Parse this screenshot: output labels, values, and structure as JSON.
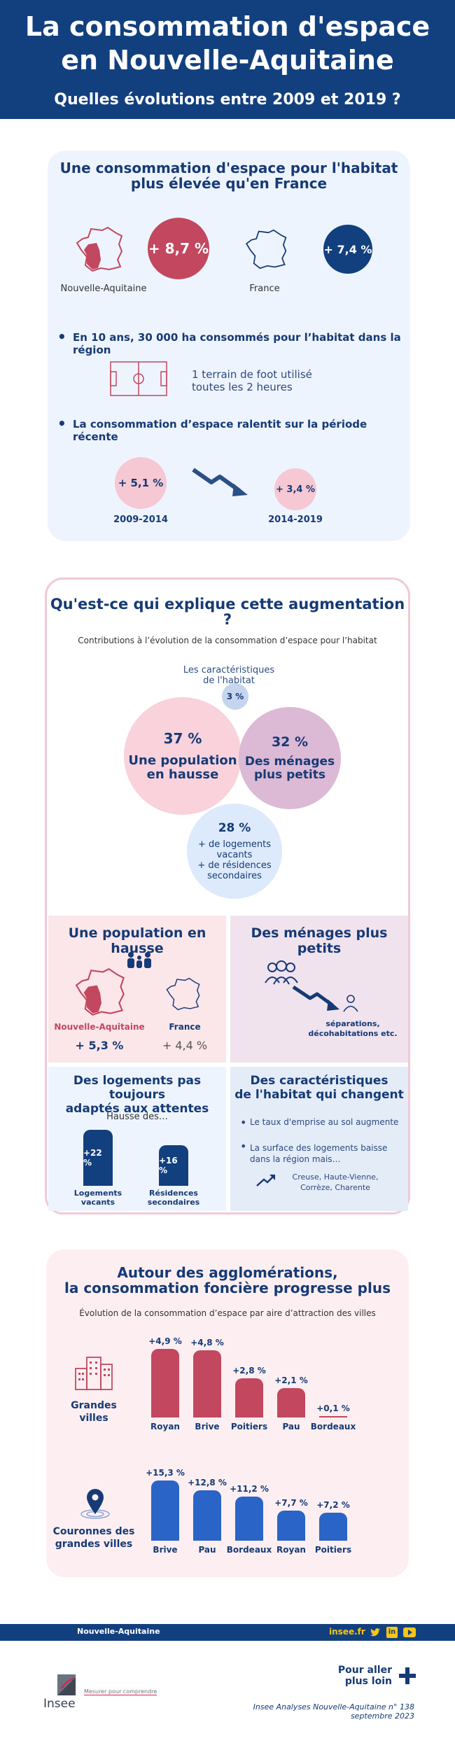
{
  "header": {
    "title_line1": "La consommation d'espace",
    "title_line2": "en Nouvelle-Aquitaine",
    "subtitle": "Quelles évolutions entre 2009 et 2019 ?"
  },
  "section1": {
    "title_line1": "Une consommation d'espace pour l'habitat",
    "title_line2": "plus élevée qu'en France",
    "na_value": "+ 8,7 %",
    "na_label": "Nouvelle-Aquitaine",
    "fr_value": "+ 7,4 %",
    "fr_label": "France",
    "bullet1": "En 10 ans, 30 000 ha consommés pour l’habitat dans la région",
    "foot_line1": "1 terrain de foot utilisé",
    "foot_line2": "toutes les 2 heures",
    "bullet2": "La consommation d’espace ralentit sur la période récente",
    "period1_value": "+ 5,1 %",
    "period1_label": "2009-2014",
    "period2_value": "+ 3,4 %",
    "period2_label": "2014-2019"
  },
  "section2": {
    "title": "Qu'est-ce qui explique cette augmentation ?",
    "subtitle": "Contributions à l’évolution de la consommation d’espace pour l’habitat",
    "c1_pct": "37 %",
    "c1_line1": "Une population",
    "c1_line2": "en hausse",
    "c2_pct": "32 %",
    "c2_line1": "Des ménages",
    "c2_line2": "plus petits",
    "c3_pct": "3 %",
    "c3_label_line1": "Les caractéristiques",
    "c3_label_line2": "de l'habitat",
    "c4_pct": "28 %",
    "c4_line1": "+ de logements",
    "c4_line2": "vacants",
    "c4_line3": "+ de résidences",
    "c4_line4": "secondaires",
    "p1_title": "Une population en hausse",
    "p1_na_label": "Nouvelle-Aquitaine",
    "p1_fr_label": "France",
    "p1_na_value": "+ 5,3 %",
    "p1_fr_value": "+ 4,4 %",
    "p2_title": "Des ménages plus petits",
    "p2_text_line1": "séparations,",
    "p2_text_line2": "décohabitations etc.",
    "p3_title_line1": "Des logements pas toujours",
    "p3_title_line2": "adaptés aux attentes",
    "p3_sub": "Hausse des…",
    "p3_b1_value": "+22 %",
    "p3_b1_line1": "Logements",
    "p3_b1_line2": "vacants",
    "p3_b2_value": "+16 %",
    "p3_b2_line1": "Résidences",
    "p3_b2_line2": "secondaires",
    "p4_title_line1": "Des caractéristiques",
    "p4_title_line2": "de l'habitat qui changent",
    "p4_bullet1": "Le taux d'emprise au sol augmente",
    "p4_bullet2_line1": "La surface des logements baisse",
    "p4_bullet2_line2": "dans la région mais…",
    "p4_note_line1": "Creuse, Haute-Vienne,",
    "p4_note_line2": "Corrèze, Charente"
  },
  "section3": {
    "title_line1": "Autour des agglomérations,",
    "title_line2": "la consommation foncière progresse plus",
    "subtitle": "Évolution de la consommation d’espace par aire d’attraction des villes",
    "group1_line1": "Grandes",
    "group1_line2": "villes",
    "group2_line1": "Couronnes des",
    "group2_line2": "grandes villes"
  },
  "chart_data": [
    {
      "type": "bar",
      "categories": [
        "Royan",
        "Brive",
        "Poitiers",
        "Pau",
        "Bordeaux"
      ],
      "values": [
        4.9,
        4.8,
        2.8,
        2.1,
        0.1
      ],
      "labels": [
        "+4,9 %",
        "+4,8 %",
        "+2,8 %",
        "+2,1 %",
        "+0,1 %"
      ],
      "color": "#c2475f"
    },
    {
      "type": "bar",
      "categories": [
        "Brive",
        "Pau",
        "Bordeaux",
        "Royan",
        "Poitiers"
      ],
      "values": [
        15.3,
        12.8,
        11.2,
        7.7,
        7.2
      ],
      "labels": [
        "+15,3 %",
        "+12,8 %",
        "+11,2 %",
        "+7,7 %",
        "+7,2 %"
      ],
      "color": "#2a64c6"
    }
  ],
  "footer": {
    "region": "Nouvelle-Aquitaine",
    "site": "insee.fr",
    "logo_text": "Insee",
    "tagline": "Mesurer pour comprendre",
    "more_line1": "Pour aller",
    "more_line2": "plus loin",
    "ref_line1": "Insee Analyses Nouvelle-Aquitaine n° 138",
    "ref_line2": "septembre 2023"
  },
  "colors": {
    "navy": "#12407f",
    "accent_red": "#c2475f",
    "accent_blue": "#2a64c6",
    "pink": "#f6c8d3",
    "mauve": "#dcb9d5"
  }
}
